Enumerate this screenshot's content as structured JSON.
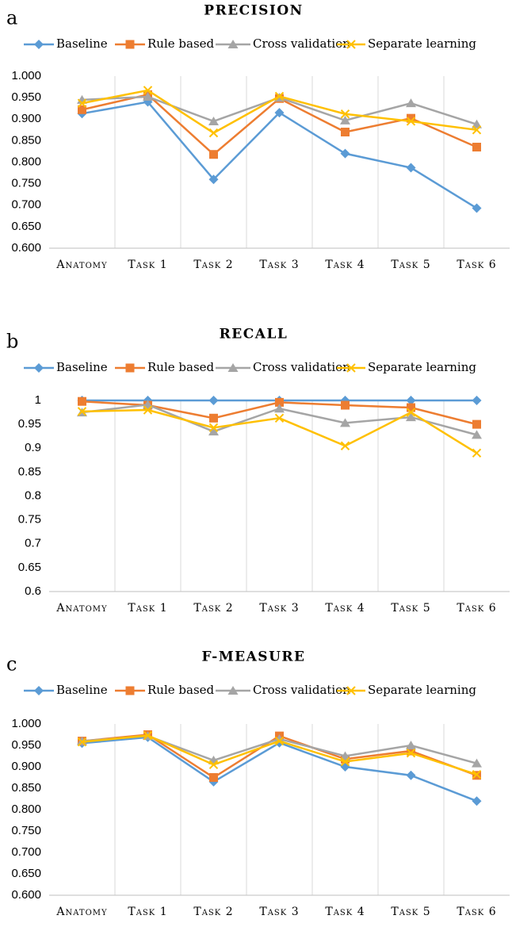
{
  "chart_data": [
    {
      "type": "line",
      "panel": "a",
      "title": "PRECISION",
      "categories": [
        "Anatomy",
        "Task 1",
        "Task 2",
        "Task 3",
        "Task 4",
        "Task 5",
        "Task 6"
      ],
      "series": [
        {
          "name": "Baseline",
          "color": "#5b9bd5",
          "marker": "diamond",
          "values": [
            0.913,
            0.94,
            0.76,
            0.915,
            0.82,
            0.787,
            0.693
          ]
        },
        {
          "name": "Rule based",
          "color": "#ed7d31",
          "marker": "square",
          "values": [
            0.922,
            0.957,
            0.818,
            0.948,
            0.87,
            0.902,
            0.835
          ]
        },
        {
          "name": "Cross validation",
          "color": "#a5a5a5",
          "marker": "triangle",
          "values": [
            0.945,
            0.952,
            0.895,
            0.95,
            0.897,
            0.937,
            0.888
          ]
        },
        {
          "name": "Separate learning",
          "color": "#ffc000",
          "marker": "x",
          "values": [
            0.937,
            0.967,
            0.868,
            0.953,
            0.912,
            0.895,
            0.875
          ]
        }
      ],
      "ylim": [
        0.6,
        1.0
      ],
      "yticks": [
        {
          "value": 0.6,
          "label": "0.600"
        },
        {
          "value": 0.65,
          "label": "0.650"
        },
        {
          "value": 0.7,
          "label": "0.700"
        },
        {
          "value": 0.75,
          "label": "0.750"
        },
        {
          "value": 0.8,
          "label": "0.800"
        },
        {
          "value": 0.85,
          "label": "0.850"
        },
        {
          "value": 0.9,
          "label": "0.900"
        },
        {
          "value": 0.95,
          "label": "0.950"
        },
        {
          "value": 1.0,
          "label": "1.000"
        }
      ],
      "grid": true,
      "legend": "top"
    },
    {
      "type": "line",
      "panel": "b",
      "title": "RECALL",
      "categories": [
        "Anatomy",
        "Task 1",
        "Task 2",
        "Task 3",
        "Task 4",
        "Task 5",
        "Task 6"
      ],
      "series": [
        {
          "name": "Baseline",
          "color": "#5b9bd5",
          "marker": "diamond",
          "values": [
            1,
            1,
            1,
            1,
            1,
            1,
            1
          ]
        },
        {
          "name": "Rule based",
          "color": "#ed7d31",
          "marker": "square",
          "values": [
            0.998,
            0.99,
            0.963,
            0.996,
            0.99,
            0.985,
            0.95
          ]
        },
        {
          "name": "Cross validation",
          "color": "#a5a5a5",
          "marker": "triangle",
          "values": [
            0.975,
            0.991,
            0.935,
            0.983,
            0.953,
            0.965,
            0.928
          ]
        },
        {
          "name": "Separate learning",
          "color": "#ffc000",
          "marker": "x",
          "values": [
            0.977,
            0.98,
            0.943,
            0.963,
            0.905,
            0.975,
            0.89
          ]
        }
      ],
      "ylim": [
        0.6,
        1
      ],
      "yticks": [
        0.6,
        0.65,
        0.7,
        0.75,
        0.8,
        0.85,
        0.9,
        0.95,
        1
      ],
      "grid": true,
      "legend": "top"
    },
    {
      "type": "line",
      "panel": "c",
      "title": "F-MEASURE",
      "categories": [
        "Anatomy",
        "Task 1",
        "Task 2",
        "Task 3",
        "Task 4",
        "Task 5",
        "Task 6"
      ],
      "series": [
        {
          "name": "Baseline",
          "color": "#5b9bd5",
          "marker": "diamond",
          "values": [
            0.955,
            0.969,
            0.865,
            0.956,
            0.9,
            0.88,
            0.82
          ]
        },
        {
          "name": "Rule based",
          "color": "#ed7d31",
          "marker": "square",
          "values": [
            0.96,
            0.975,
            0.875,
            0.972,
            0.918,
            0.937,
            0.88
          ]
        },
        {
          "name": "Cross validation",
          "color": "#a5a5a5",
          "marker": "triangle",
          "values": [
            0.96,
            0.972,
            0.915,
            0.965,
            0.925,
            0.95,
            0.908
          ]
        },
        {
          "name": "Separate learning",
          "color": "#ffc000",
          "marker": "x",
          "values": [
            0.958,
            0.973,
            0.905,
            0.96,
            0.912,
            0.932,
            0.882
          ]
        }
      ],
      "ylim": [
        0.6,
        1.0
      ],
      "yticks": [
        {
          "value": 0.6,
          "label": "0.600"
        },
        {
          "value": 0.65,
          "label": "0.650"
        },
        {
          "value": 0.7,
          "label": "0.700"
        },
        {
          "value": 0.75,
          "label": "0.750"
        },
        {
          "value": 0.8,
          "label": "0.800"
        },
        {
          "value": 0.85,
          "label": "0.850"
        },
        {
          "value": 0.9,
          "label": "0.900"
        },
        {
          "value": 0.95,
          "label": "0.950"
        },
        {
          "value": 1.0,
          "label": "1.000"
        }
      ],
      "grid": true,
      "legend": "top"
    }
  ]
}
